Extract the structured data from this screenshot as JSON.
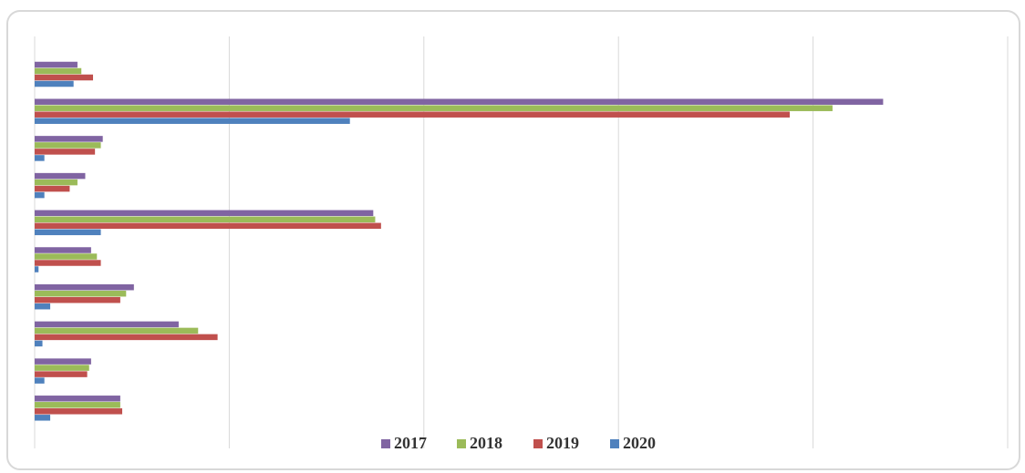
{
  "chart_data": {
    "type": "bar",
    "orientation": "horizontal",
    "categories": [
      null,
      null,
      null,
      null,
      null,
      null,
      null,
      null,
      null,
      null
    ],
    "series": [
      {
        "name": "2017",
        "color": "#8064a2",
        "values": [
          0.22,
          4.36,
          0.35,
          0.26,
          1.74,
          0.29,
          0.51,
          0.74,
          0.29,
          0.44
        ]
      },
      {
        "name": "2018",
        "color": "#9bbb59",
        "values": [
          0.24,
          4.1,
          0.34,
          0.22,
          1.75,
          0.32,
          0.47,
          0.84,
          0.28,
          0.44
        ]
      },
      {
        "name": "2019",
        "color": "#c0504d",
        "values": [
          0.3,
          3.88,
          0.31,
          0.18,
          1.78,
          0.34,
          0.44,
          0.94,
          0.27,
          0.45
        ]
      },
      {
        "name": "2020",
        "color": "#4f81bd",
        "values": [
          0.2,
          1.62,
          0.05,
          0.05,
          0.34,
          0.02,
          0.08,
          0.04,
          0.05,
          0.08
        ]
      }
    ],
    "xlim": [
      0,
      5
    ],
    "xticks": [
      0,
      1,
      2,
      3,
      4,
      5
    ],
    "grid": true,
    "legend": "bottom"
  }
}
